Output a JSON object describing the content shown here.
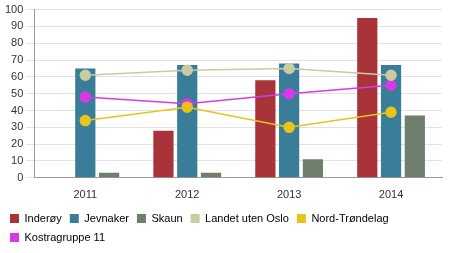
{
  "chart_data": {
    "type": "bar",
    "categories": [
      "2011",
      "2012",
      "2013",
      "2014"
    ],
    "series": [
      {
        "name": "Inderøy",
        "type": "bar",
        "color": "#a8343a",
        "values": [
          null,
          28,
          58,
          95
        ]
      },
      {
        "name": "Jevnaker",
        "type": "bar",
        "color": "#3a7d98",
        "values": [
          65,
          67,
          68,
          67
        ]
      },
      {
        "name": "Skaun",
        "type": "bar",
        "color": "#6e7f6e",
        "values": [
          3,
          3,
          11,
          37
        ]
      },
      {
        "name": "Landet uten Oslo",
        "type": "line",
        "marker": "circle",
        "color": "#c9cba3",
        "values": [
          61,
          64,
          65,
          61
        ]
      },
      {
        "name": "Nord-Trøndelag",
        "type": "line",
        "marker": "circle",
        "color": "#e8c31c",
        "values": [
          34,
          42,
          30,
          39
        ]
      },
      {
        "name": "Kostragruppe 11",
        "type": "line",
        "marker": "circle",
        "color": "#d63ae6",
        "values": [
          48,
          44,
          50,
          55
        ]
      }
    ],
    "ylim": [
      0,
      100
    ],
    "yticks": [
      0,
      10,
      20,
      30,
      40,
      50,
      60,
      70,
      80,
      90,
      100
    ],
    "grid": true,
    "legend": "bottom"
  }
}
